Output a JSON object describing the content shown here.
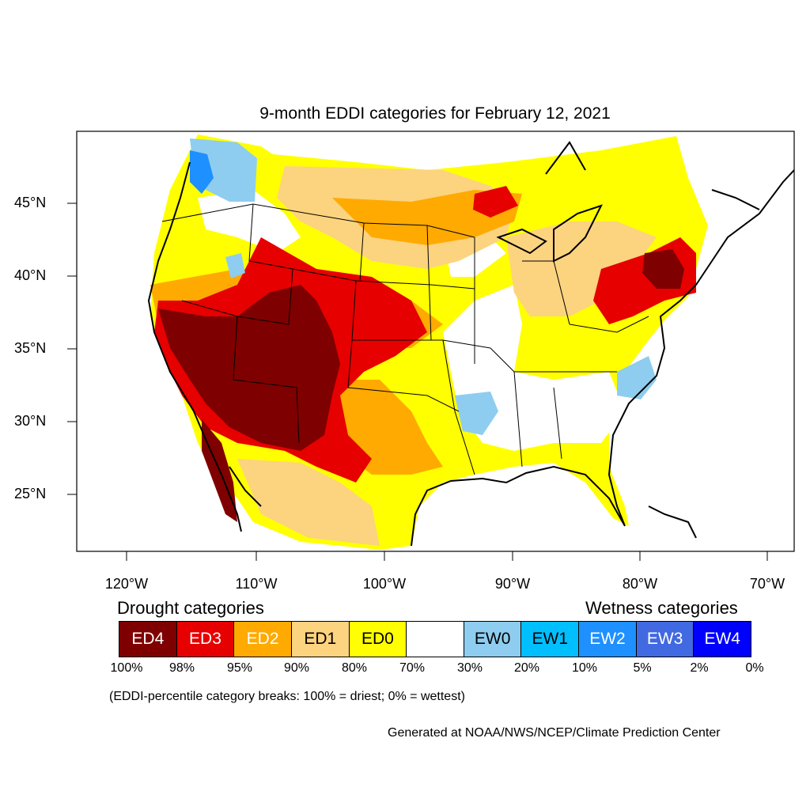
{
  "title": "9-month EDDI categories for February 12, 2021",
  "axes": {
    "lat_labels": [
      "45°N",
      "40°N",
      "35°N",
      "30°N",
      "25°N"
    ],
    "lon_labels": [
      "120°W",
      "110°W",
      "100°W",
      "90°W",
      "80°W",
      "70°W"
    ]
  },
  "legend": {
    "drought_heading": "Drought categories",
    "wetness_heading": "Wetness categories",
    "categories": [
      {
        "label": "ED4",
        "color": "#7f0000",
        "text_color": "#ffffff"
      },
      {
        "label": "ED3",
        "color": "#e60000",
        "text_color": "#ffffff"
      },
      {
        "label": "ED2",
        "color": "#ffaa00",
        "text_color": "#ffffff"
      },
      {
        "label": "ED1",
        "color": "#fcd37f",
        "text_color": "#000000"
      },
      {
        "label": "ED0",
        "color": "#ffff00",
        "text_color": "#000000"
      },
      {
        "label": "",
        "color": "#ffffff",
        "text_color": "#000000"
      },
      {
        "label": "EW0",
        "color": "#8ecdf0",
        "text_color": "#000000"
      },
      {
        "label": "EW1",
        "color": "#00bfff",
        "text_color": "#000000"
      },
      {
        "label": "EW2",
        "color": "#1e90ff",
        "text_color": "#ffffff"
      },
      {
        "label": "EW3",
        "color": "#4169e1",
        "text_color": "#ffffff"
      },
      {
        "label": "EW4",
        "color": "#0000ff",
        "text_color": "#ffffff"
      }
    ],
    "breaks": [
      "100%",
      "98%",
      "95%",
      "90%",
      "80%",
      "70%",
      "30%",
      "20%",
      "10%",
      "5%",
      "2%",
      "0%"
    ]
  },
  "note": "(EDDI-percentile category breaks: 100% = driest; 0% = wettest)",
  "credit": "Generated at NOAA/NWS/NCEP/Climate Prediction Center"
}
